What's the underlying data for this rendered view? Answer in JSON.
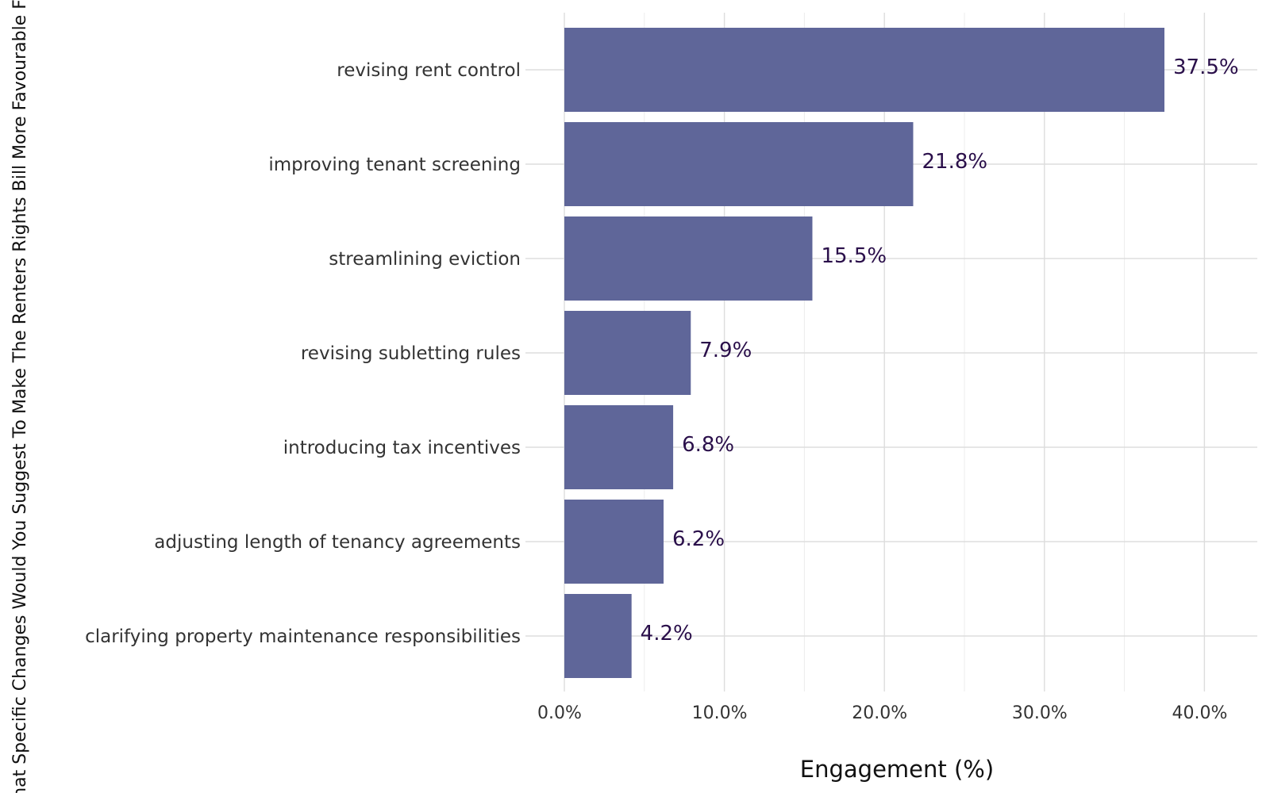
{
  "chart_data": {
    "type": "bar",
    "orientation": "horizontal",
    "title": "",
    "xlabel": "Engagement (%)",
    "ylabel": "What Specific Changes Would You Suggest To Make The Renters Rights Bill More Favourable For Landlords?",
    "categories": [
      "revising rent control",
      "improving tenant screening",
      "streamlining eviction",
      "revising subletting rules",
      "introducing tax incentives",
      "adjusting length of tenancy agreements",
      "clarifying property maintenance responsibilities"
    ],
    "values": [
      37.5,
      21.8,
      15.5,
      7.9,
      6.8,
      6.2,
      4.2
    ],
    "value_labels": [
      "37.5%",
      "21.8%",
      "15.5%",
      "7.9%",
      "6.8%",
      "6.2%",
      "4.2%"
    ],
    "xlim": [
      0,
      43
    ],
    "xticks": [
      0,
      10,
      20,
      30,
      40
    ],
    "xtick_labels": [
      "0.0%",
      "10.0%",
      "20.0%",
      "30.0%",
      "40.0%"
    ],
    "grid": true,
    "legend": "none",
    "bar_color": "#5f6699",
    "label_color": "#2a0f4a"
  }
}
